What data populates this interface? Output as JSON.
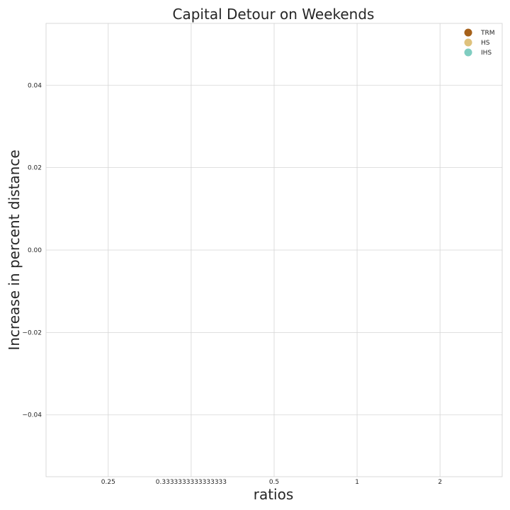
{
  "chart_data": {
    "type": "scatter",
    "title": "Capital Detour on Weekends",
    "xlabel": "ratios",
    "ylabel": "Increase in percent distance",
    "categories": [
      "0.25",
      "0.3333333333333333",
      "0.5",
      "1",
      "2"
    ],
    "yticks": [
      -0.04,
      -0.02,
      0.0,
      0.02,
      0.04
    ],
    "ytick_labels": [
      "−0.04",
      "−0.02",
      "0.00",
      "0.02",
      "0.04"
    ],
    "ylim": [
      -0.055,
      0.055
    ],
    "grid": true,
    "legend_position": "top-right",
    "series": [
      {
        "name": "TRM",
        "color": "#a6611a",
        "values": []
      },
      {
        "name": "HS",
        "color": "#dfc27d",
        "values": []
      },
      {
        "name": "IHS",
        "color": "#80cdc1",
        "values": []
      }
    ]
  }
}
